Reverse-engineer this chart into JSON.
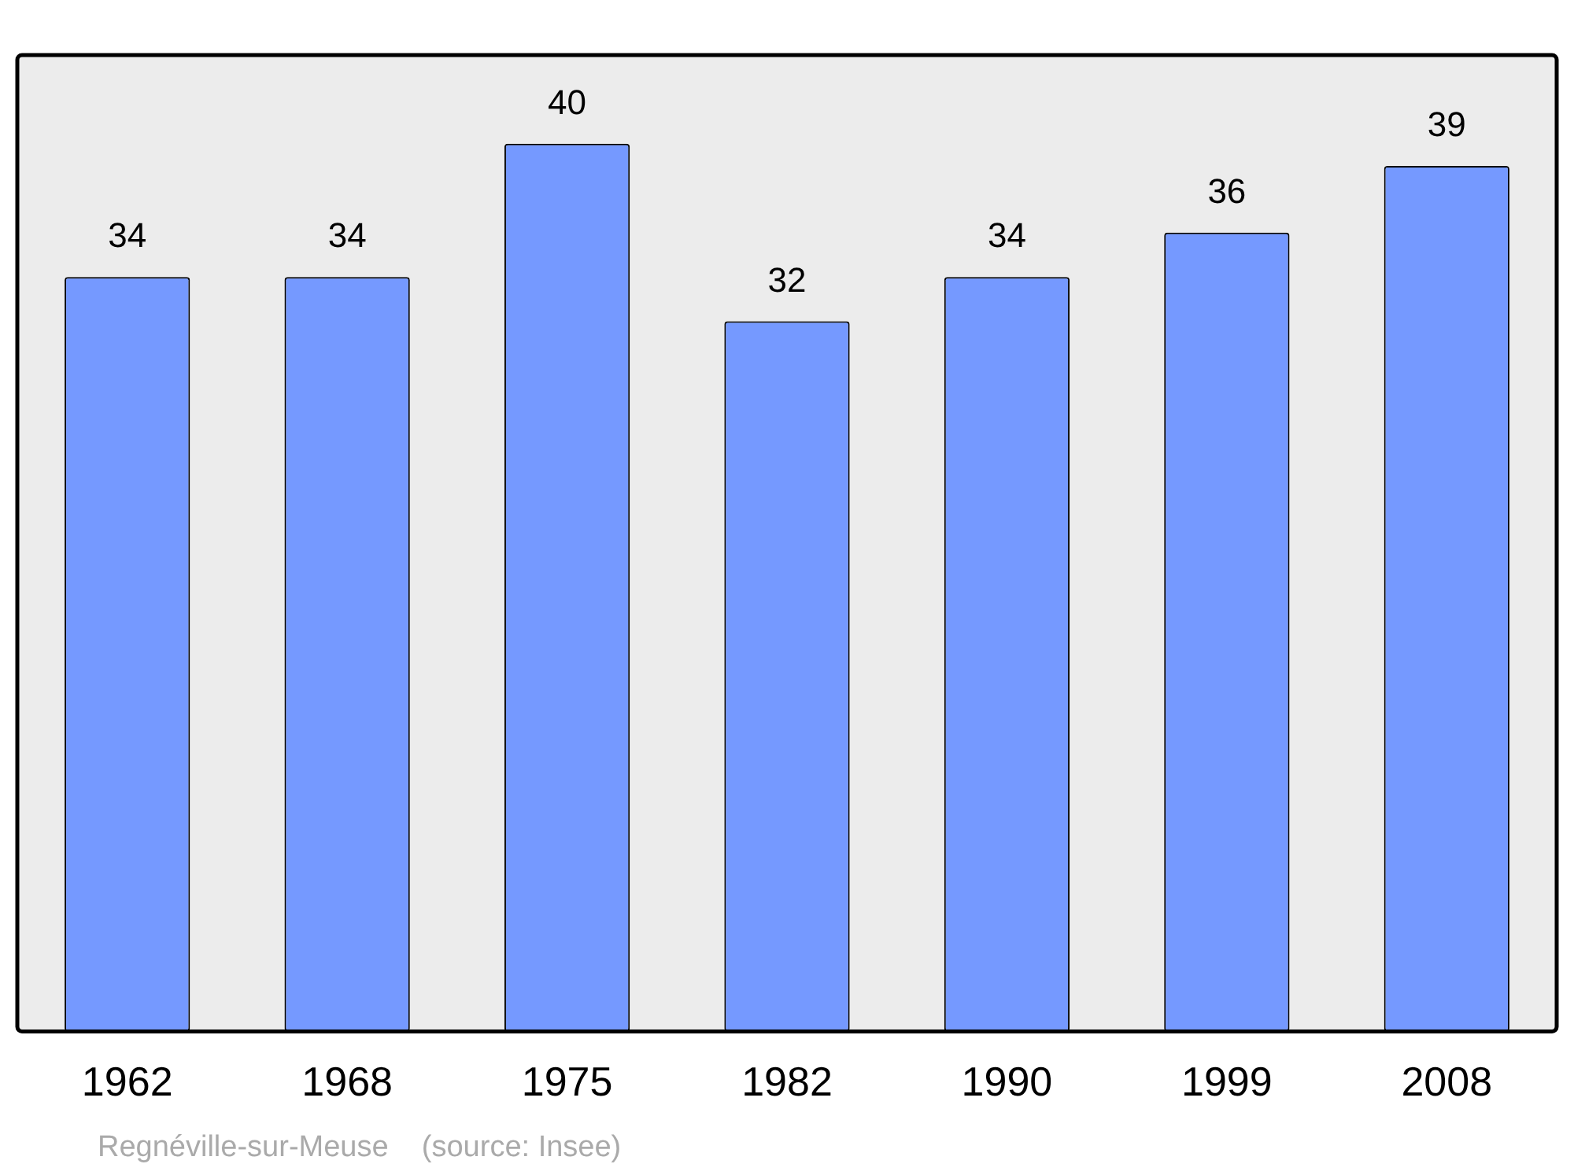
{
  "chart_data": {
    "type": "bar",
    "categories": [
      "1962",
      "1968",
      "1975",
      "1982",
      "1990",
      "1999",
      "2008"
    ],
    "values": [
      34,
      34,
      40,
      32,
      34,
      36,
      39
    ],
    "color": "#7599ff",
    "ylim": [
      0,
      44
    ],
    "data_labels": true,
    "grid": false,
    "legend": false,
    "annotations": [
      "Regnéville-sur-Meuse    (source: Insee)"
    ]
  }
}
